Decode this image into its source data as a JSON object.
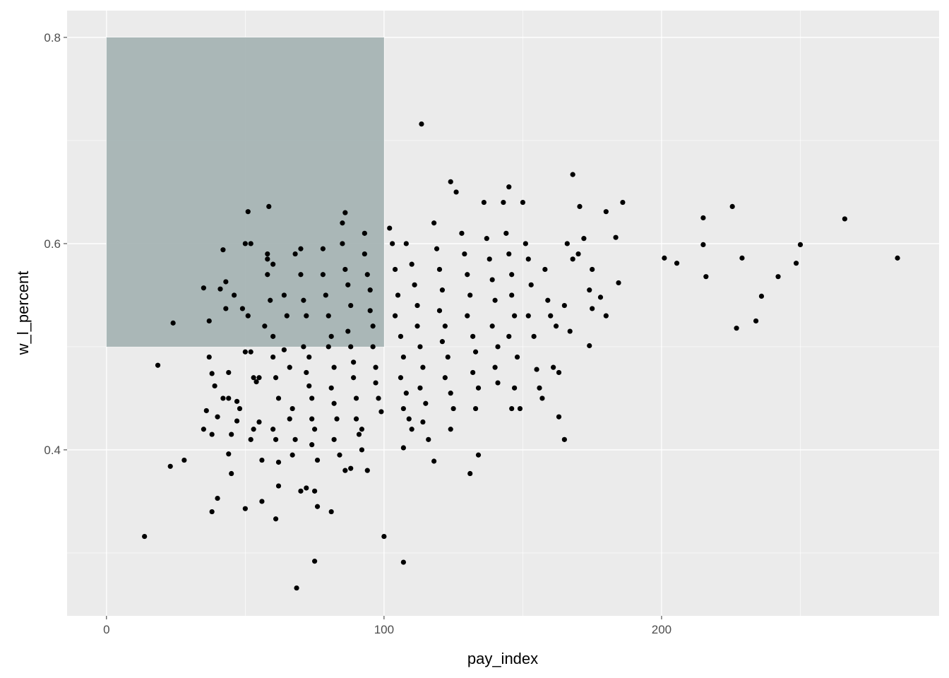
{
  "chart_data": {
    "type": "scatter",
    "title": "",
    "xlabel": "pay_index",
    "ylabel": "w_l_percent",
    "xlim": [
      -14.2,
      300
    ],
    "ylim": [
      0.239,
      0.826
    ],
    "x_ticks": [
      0,
      100,
      200
    ],
    "x_tick_labels": [
      "0",
      "100",
      "200"
    ],
    "y_ticks": [
      0.4,
      0.6,
      0.8
    ],
    "y_tick_labels": [
      "0.4",
      "0.6",
      "0.8"
    ],
    "x_minor": [
      50,
      150,
      250
    ],
    "y_minor": [
      0.3,
      0.5,
      0.7
    ],
    "grid": true,
    "colors": {
      "panel": "#EBEBEB",
      "grid": "#FFFFFF",
      "point": "#000000",
      "rect": "#A7B4B4"
    },
    "highlight_rect": {
      "xmin": 0,
      "xmax": 100,
      "ymin": 0.5,
      "ymax": 0.8
    },
    "points": [
      [
        13.7,
        0.316
      ],
      [
        113.5,
        0.716
      ],
      [
        168,
        0.667
      ],
      [
        124,
        0.66
      ],
      [
        145,
        0.655
      ],
      [
        285,
        0.586
      ],
      [
        266,
        0.624
      ],
      [
        250,
        0.599
      ],
      [
        248.5,
        0.581
      ],
      [
        242,
        0.568
      ],
      [
        236,
        0.549
      ],
      [
        234,
        0.525
      ],
      [
        227,
        0.518
      ],
      [
        229,
        0.586
      ],
      [
        225.5,
        0.636
      ],
      [
        215,
        0.625
      ],
      [
        215,
        0.599
      ],
      [
        216,
        0.568
      ],
      [
        201,
        0.586
      ],
      [
        205.5,
        0.581
      ],
      [
        186,
        0.64
      ],
      [
        180,
        0.631
      ],
      [
        183.5,
        0.606
      ],
      [
        184.5,
        0.562
      ],
      [
        174,
        0.555
      ],
      [
        174,
        0.501
      ],
      [
        170.5,
        0.636
      ],
      [
        68.5,
        0.266
      ],
      [
        75,
        0.292
      ],
      [
        107,
        0.291
      ],
      [
        100,
        0.316
      ],
      [
        38,
        0.34
      ],
      [
        23,
        0.384
      ],
      [
        18.5,
        0.482
      ],
      [
        24,
        0.523
      ],
      [
        51,
        0.631
      ],
      [
        58.5,
        0.636
      ],
      [
        165,
        0.41
      ],
      [
        163,
        0.432
      ],
      [
        131,
        0.377
      ],
      [
        118,
        0.389
      ],
      [
        107,
        0.402
      ],
      [
        61,
        0.333
      ],
      [
        50,
        0.343
      ],
      [
        40,
        0.353
      ],
      [
        28,
        0.39
      ],
      [
        35,
        0.557
      ],
      [
        37,
        0.49
      ],
      [
        37,
        0.525
      ],
      [
        38,
        0.474
      ],
      [
        39,
        0.462
      ],
      [
        36,
        0.438
      ],
      [
        35,
        0.42
      ],
      [
        38,
        0.415
      ],
      [
        40,
        0.432
      ],
      [
        42,
        0.45
      ],
      [
        42,
        0.594
      ],
      [
        43,
        0.563
      ],
      [
        43,
        0.537
      ],
      [
        41,
        0.556
      ],
      [
        44,
        0.475
      ],
      [
        44,
        0.45
      ],
      [
        45,
        0.415
      ],
      [
        44,
        0.396
      ],
      [
        45,
        0.377
      ],
      [
        47,
        0.447
      ],
      [
        47,
        0.428
      ],
      [
        48,
        0.44
      ],
      [
        49,
        0.537
      ],
      [
        50,
        0.6
      ],
      [
        52,
        0.6
      ],
      [
        51,
        0.53
      ],
      [
        50,
        0.495
      ],
      [
        52,
        0.495
      ],
      [
        53,
        0.47
      ],
      [
        54,
        0.466
      ],
      [
        55,
        0.47
      ],
      [
        53,
        0.42
      ],
      [
        52,
        0.41
      ],
      [
        55,
        0.427
      ],
      [
        56,
        0.39
      ],
      [
        56,
        0.35
      ],
      [
        57,
        0.52
      ],
      [
        58,
        0.57
      ],
      [
        58,
        0.585
      ],
      [
        59,
        0.545
      ],
      [
        60,
        0.51
      ],
      [
        60,
        0.49
      ],
      [
        61,
        0.47
      ],
      [
        62,
        0.45
      ],
      [
        60,
        0.42
      ],
      [
        61,
        0.41
      ],
      [
        62,
        0.388
      ],
      [
        62,
        0.365
      ],
      [
        64,
        0.55
      ],
      [
        65,
        0.53
      ],
      [
        64,
        0.497
      ],
      [
        66,
        0.48
      ],
      [
        67,
        0.44
      ],
      [
        66,
        0.43
      ],
      [
        68,
        0.41
      ],
      [
        67,
        0.395
      ],
      [
        68,
        0.59
      ],
      [
        70,
        0.595
      ],
      [
        70,
        0.57
      ],
      [
        71,
        0.545
      ],
      [
        72,
        0.53
      ],
      [
        71,
        0.5
      ],
      [
        73,
        0.49
      ],
      [
        72,
        0.475
      ],
      [
        73,
        0.462
      ],
      [
        74,
        0.45
      ],
      [
        74,
        0.43
      ],
      [
        75,
        0.42
      ],
      [
        74,
        0.405
      ],
      [
        76,
        0.39
      ],
      [
        75,
        0.36
      ],
      [
        76,
        0.345
      ],
      [
        70,
        0.36
      ],
      [
        72,
        0.363
      ],
      [
        78,
        0.595
      ],
      [
        78,
        0.57
      ],
      [
        79,
        0.55
      ],
      [
        80,
        0.53
      ],
      [
        81,
        0.51
      ],
      [
        80,
        0.5
      ],
      [
        82,
        0.48
      ],
      [
        81,
        0.46
      ],
      [
        82,
        0.445
      ],
      [
        83,
        0.43
      ],
      [
        82,
        0.41
      ],
      [
        84,
        0.395
      ],
      [
        81,
        0.34
      ],
      [
        85,
        0.62
      ],
      [
        86,
        0.63
      ],
      [
        85,
        0.6
      ],
      [
        86,
        0.575
      ],
      [
        87,
        0.56
      ],
      [
        88,
        0.54
      ],
      [
        87,
        0.515
      ],
      [
        88,
        0.5
      ],
      [
        89,
        0.485
      ],
      [
        89,
        0.47
      ],
      [
        90,
        0.45
      ],
      [
        90,
        0.43
      ],
      [
        91,
        0.415
      ],
      [
        92,
        0.4
      ],
      [
        88,
        0.382
      ],
      [
        86,
        0.38
      ],
      [
        93,
        0.61
      ],
      [
        93,
        0.59
      ],
      [
        94,
        0.57
      ],
      [
        95,
        0.555
      ],
      [
        95,
        0.535
      ],
      [
        96,
        0.52
      ],
      [
        96,
        0.5
      ],
      [
        97,
        0.48
      ],
      [
        97,
        0.465
      ],
      [
        98,
        0.45
      ],
      [
        99,
        0.437
      ],
      [
        94,
        0.38
      ],
      [
        92,
        0.42
      ],
      [
        58,
        0.59
      ],
      [
        60,
        0.58
      ],
      [
        46,
        0.55
      ],
      [
        102,
        0.615
      ],
      [
        103,
        0.6
      ],
      [
        104,
        0.575
      ],
      [
        105,
        0.55
      ],
      [
        104,
        0.53
      ],
      [
        106,
        0.51
      ],
      [
        107,
        0.49
      ],
      [
        106,
        0.47
      ],
      [
        108,
        0.455
      ],
      [
        107,
        0.44
      ],
      [
        109,
        0.43
      ],
      [
        110,
        0.42
      ],
      [
        108,
        0.6
      ],
      [
        110,
        0.58
      ],
      [
        111,
        0.56
      ],
      [
        112,
        0.54
      ],
      [
        112,
        0.52
      ],
      [
        113,
        0.5
      ],
      [
        114,
        0.48
      ],
      [
        113,
        0.46
      ],
      [
        115,
        0.445
      ],
      [
        114,
        0.427
      ],
      [
        116,
        0.41
      ],
      [
        118,
        0.62
      ],
      [
        119,
        0.595
      ],
      [
        120,
        0.575
      ],
      [
        121,
        0.555
      ],
      [
        120,
        0.535
      ],
      [
        122,
        0.52
      ],
      [
        121,
        0.505
      ],
      [
        123,
        0.49
      ],
      [
        122,
        0.47
      ],
      [
        124,
        0.455
      ],
      [
        125,
        0.44
      ],
      [
        124,
        0.42
      ],
      [
        126,
        0.65
      ],
      [
        128,
        0.61
      ],
      [
        129,
        0.59
      ],
      [
        130,
        0.57
      ],
      [
        131,
        0.55
      ],
      [
        130,
        0.53
      ],
      [
        132,
        0.51
      ],
      [
        133,
        0.495
      ],
      [
        132,
        0.475
      ],
      [
        134,
        0.46
      ],
      [
        133,
        0.44
      ],
      [
        134,
        0.395
      ],
      [
        136,
        0.64
      ],
      [
        137,
        0.605
      ],
      [
        138,
        0.585
      ],
      [
        139,
        0.565
      ],
      [
        140,
        0.545
      ],
      [
        139,
        0.52
      ],
      [
        141,
        0.5
      ],
      [
        140,
        0.48
      ],
      [
        141,
        0.465
      ],
      [
        143,
        0.64
      ],
      [
        144,
        0.61
      ],
      [
        145,
        0.59
      ],
      [
        146,
        0.57
      ],
      [
        146,
        0.55
      ],
      [
        147,
        0.53
      ],
      [
        145,
        0.51
      ],
      [
        148,
        0.49
      ],
      [
        147,
        0.46
      ],
      [
        146,
        0.44
      ],
      [
        149,
        0.44
      ],
      [
        150,
        0.64
      ],
      [
        151,
        0.6
      ],
      [
        152,
        0.585
      ],
      [
        153,
        0.56
      ],
      [
        152,
        0.53
      ],
      [
        154,
        0.51
      ],
      [
        155,
        0.478
      ],
      [
        156,
        0.46
      ],
      [
        157,
        0.45
      ],
      [
        158,
        0.575
      ],
      [
        159,
        0.545
      ],
      [
        160,
        0.53
      ],
      [
        161,
        0.48
      ],
      [
        162,
        0.52
      ],
      [
        163,
        0.475
      ],
      [
        165,
        0.54
      ],
      [
        166,
        0.6
      ],
      [
        167,
        0.515
      ],
      [
        168,
        0.585
      ],
      [
        170,
        0.59
      ],
      [
        172,
        0.605
      ],
      [
        175,
        0.575
      ],
      [
        175,
        0.537
      ],
      [
        178,
        0.548
      ],
      [
        180,
        0.53
      ]
    ]
  }
}
